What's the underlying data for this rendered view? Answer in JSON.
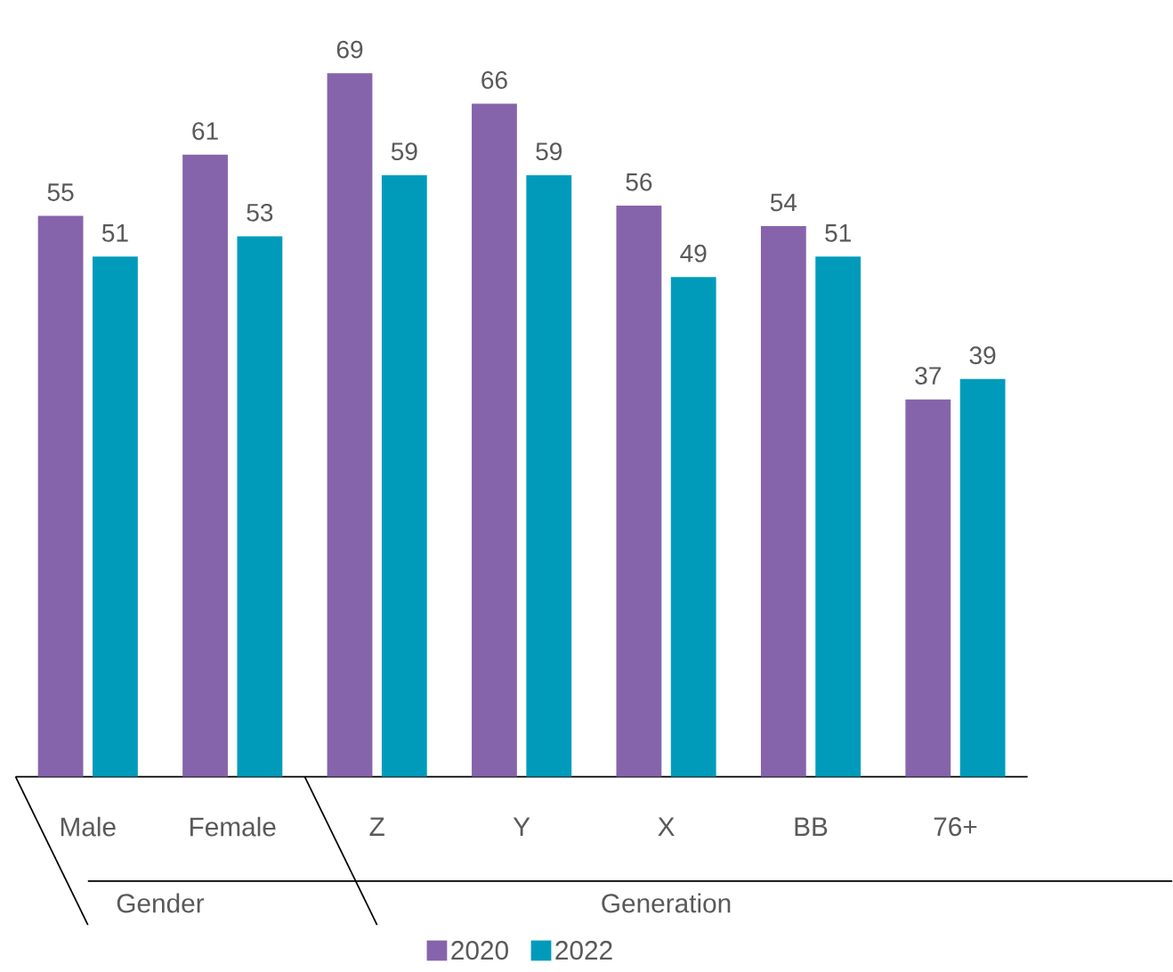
{
  "chart_data": {
    "type": "bar",
    "categories": [
      "Male",
      "Female",
      "Z",
      "Y",
      "X",
      "BB",
      "76+"
    ],
    "series": [
      {
        "name": "2020",
        "color": "#8664ab",
        "values": [
          55,
          61,
          69,
          66,
          56,
          54,
          37
        ]
      },
      {
        "name": "2022",
        "color": "#009bbb",
        "values": [
          51,
          53,
          59,
          59,
          49,
          51,
          39
        ]
      }
    ],
    "data_labels": true,
    "legend": "bottom",
    "annotations": [
      "Gender",
      "Generation"
    ]
  }
}
